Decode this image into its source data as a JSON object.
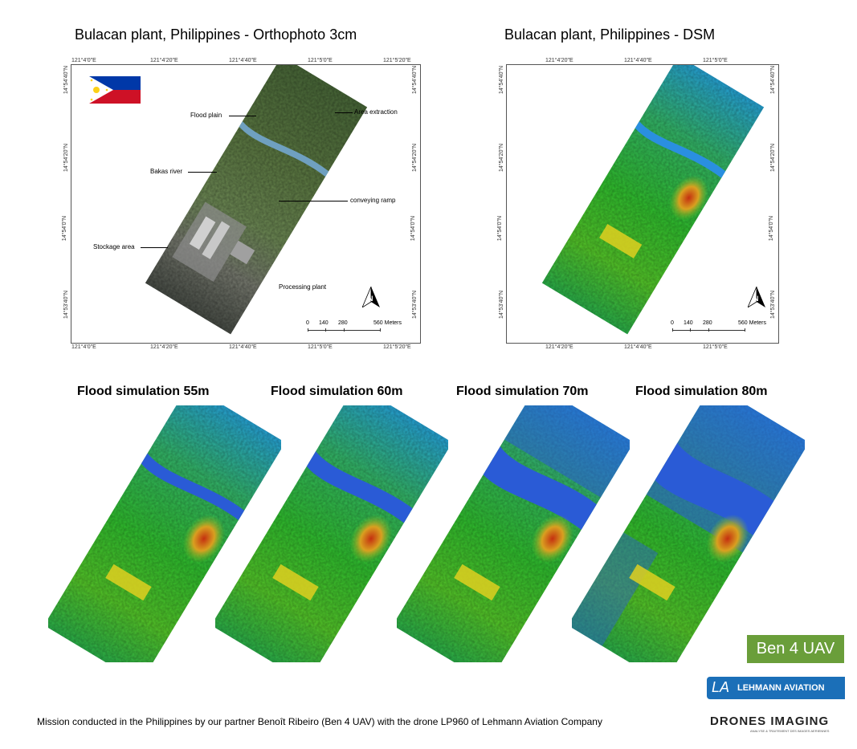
{
  "titles": {
    "ortho": "Bulacan plant, Philippines - Orthophoto 3cm",
    "dsm": "Bulacan plant, Philippines - DSM",
    "sim55": "Flood simulation 55m",
    "sim60": "Flood simulation 60m",
    "sim70": "Flood simulation 70m",
    "sim80": "Flood simulation 80m"
  },
  "ortho_map": {
    "top_coords": [
      "121°4'0\"E",
      "121°4'20\"E",
      "121°4'40\"E",
      "121°5'0\"E",
      "121°5'20\"E"
    ],
    "bottom_coords": [
      "121°4'0\"E",
      "121°4'20\"E",
      "121°4'40\"E",
      "121°5'0\"E",
      "121°5'20\"E"
    ],
    "left_coords": [
      "14°54'40\"N",
      "14°54'20\"N",
      "14°54'0\"N",
      "14°53'40\"N"
    ],
    "right_coords": [
      "14°54'40\"N",
      "14°54'20\"N",
      "14°54'0\"N",
      "14°53'40\"N"
    ],
    "labels": {
      "flood_plain": "Flood plain",
      "area_extraction": "Area extraction",
      "bakas_river": "Bakas river",
      "conveying_ramp": "conveying ramp",
      "stockage_area": "Stockage area",
      "processing_plant": "Processing plant"
    },
    "scale": [
      "0",
      "140",
      "280",
      "560 Meters"
    ]
  },
  "dsm_map": {
    "top_coords": [
      "121°4'20\"E",
      "121°4'40\"E",
      "121°5'0\"E"
    ],
    "bottom_coords": [
      "121°4'20\"E",
      "121°4'40\"E",
      "121°5'0\"E"
    ],
    "left_coords": [
      "14°54'40\"N",
      "14°54'20\"N",
      "14°54'0\"N",
      "14°53'40\"N"
    ],
    "right_coords": [
      "14°54'40\"N",
      "14°54'20\"N",
      "14°54'0\"N",
      "14°53'40\"N"
    ],
    "scale": [
      "0",
      "140",
      "280",
      "560 Meters"
    ]
  },
  "colors": {
    "flag_blue": "#0038a8",
    "flag_red": "#ce1126",
    "flag_sun": "#fcd116",
    "ben4": "#6a9e3a",
    "lehmann": "#1b6fb8",
    "water": "#2a5bd6",
    "dsm_low": "#1e90ff",
    "dsm_mid": "#2ec42e",
    "dsm_high": "#d03a10"
  },
  "icons": [
    "philippines-flag",
    "north-arrow-icon"
  ],
  "footer": {
    "credit": "Mission conducted in the Philippines by our partner Benoît Ribeiro (Ben 4 UAV) with the drone LP960 of Lehmann Aviation Company",
    "ben4": "Ben 4 UAV",
    "lehmann_logo": "LA",
    "lehmann_text": "LEHMANN AVIATION",
    "drones_imaging": "DRONES IMAGING",
    "drones_imaging_sub": "ANALYSE & TRAITEMENT DES IMAGES AERIENNES"
  }
}
